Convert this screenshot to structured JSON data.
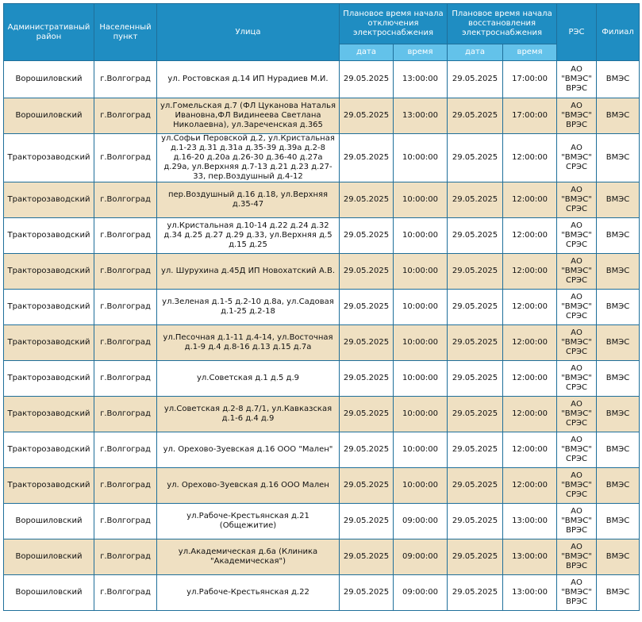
{
  "headers": {
    "district": "Административный район",
    "locality": "Населенный пункт",
    "street": "Улица",
    "off_time": "Плановое время начала отключения электроснабжения",
    "on_time": "Плановое время начала восстановления электроснабжения",
    "res": "РЭС",
    "branch": "Филиал",
    "date": "дата",
    "time": "время"
  },
  "rows": [
    {
      "district": "Ворошиловский",
      "locality": "г.Волгоград",
      "street": "ул. Ростовская д.14 ИП Нурадиев М.И.",
      "off_date": "29.05.2025",
      "off_time": "13:00:00",
      "on_date": "29.05.2025",
      "on_time": "17:00:00",
      "res": "АО \"ВМЭС\" ВРЭС",
      "branch": "ВМЭС"
    },
    {
      "district": "Ворошиловский",
      "locality": "г.Волгоград",
      "street": "ул.Гомельская д.7 (ФЛ Цуканова Наталья Ивановна,ФЛ Видинеева Светлана Николаевна), ул.Зареченская д.365",
      "off_date": "29.05.2025",
      "off_time": "13:00:00",
      "on_date": "29.05.2025",
      "on_time": "17:00:00",
      "res": "АО \"ВМЭС\" ВРЭС",
      "branch": "ВМЭС"
    },
    {
      "district": "Тракторозаводский",
      "locality": "г.Волгоград",
      "street": "ул.Софьи Перовской д.2, ул.Кристальная д.1-23 д.31 д.31а д.35-39 д.39а д.2-8 д.16-20 д.20а д.26-30 д.36-40 д.27а д.29а, ул.Верхняя д.7-13 д.21 д.23 д.27-33, пер.Воздушный д.4-12",
      "off_date": "29.05.2025",
      "off_time": "10:00:00",
      "on_date": "29.05.2025",
      "on_time": "12:00:00",
      "res": "АО \"ВМЭС\" СРЭС",
      "branch": "ВМЭС"
    },
    {
      "district": "Тракторозаводский",
      "locality": "г.Волгоград",
      "street": "пер.Воздушный д.16 д.18, ул.Верхняя д.35-47",
      "off_date": "29.05.2025",
      "off_time": "10:00:00",
      "on_date": "29.05.2025",
      "on_time": "12:00:00",
      "res": "АО \"ВМЭС\" СРЭС",
      "branch": "ВМЭС"
    },
    {
      "district": "Тракторозаводский",
      "locality": "г.Волгоград",
      "street": "ул.Кристальная д.10-14 д.22 д.24 д.32 д.34 д.25 д.27 д.29 д.33, ул.Верхняя д.5 д.15 д.25",
      "off_date": "29.05.2025",
      "off_time": "10:00:00",
      "on_date": "29.05.2025",
      "on_time": "12:00:00",
      "res": "АО \"ВМЭС\" СРЭС",
      "branch": "ВМЭС"
    },
    {
      "district": "Тракторозаводский",
      "locality": "г.Волгоград",
      "street": "ул. Шурухина д.45Д ИП Новохатский А.В.",
      "off_date": "29.05.2025",
      "off_time": "10:00:00",
      "on_date": "29.05.2025",
      "on_time": "12:00:00",
      "res": "АО \"ВМЭС\" СРЭС",
      "branch": "ВМЭС"
    },
    {
      "district": "Тракторозаводский",
      "locality": "г.Волгоград",
      "street": "ул.Зеленая д.1-5 д.2-10 д.8а, ул.Садовая д.1-25 д.2-18",
      "off_date": "29.05.2025",
      "off_time": "10:00:00",
      "on_date": "29.05.2025",
      "on_time": "12:00:00",
      "res": "АО \"ВМЭС\" СРЭС",
      "branch": "ВМЭС"
    },
    {
      "district": "Тракторозаводский",
      "locality": "г.Волгоград",
      "street": "ул.Песочная д.1-11 д.4-14, ул.Восточная д.1-9 д.4 д.8-16 д.13 д.15 д.7а",
      "off_date": "29.05.2025",
      "off_time": "10:00:00",
      "on_date": "29.05.2025",
      "on_time": "12:00:00",
      "res": "АО \"ВМЭС\" СРЭС",
      "branch": "ВМЭС"
    },
    {
      "district": "Тракторозаводский",
      "locality": "г.Волгоград",
      "street": "ул.Советская д.1 д.5 д.9",
      "off_date": "29.05.2025",
      "off_time": "10:00:00",
      "on_date": "29.05.2025",
      "on_time": "12:00:00",
      "res": "АО \"ВМЭС\" СРЭС",
      "branch": "ВМЭС"
    },
    {
      "district": "Тракторозаводский",
      "locality": "г.Волгоград",
      "street": "ул.Советская д.2-8 д.7/1, ул.Кавказская д.1-6 д.4 д.9",
      "off_date": "29.05.2025",
      "off_time": "10:00:00",
      "on_date": "29.05.2025",
      "on_time": "12:00:00",
      "res": "АО \"ВМЭС\" СРЭС",
      "branch": "ВМЭС"
    },
    {
      "district": "Тракторозаводский",
      "locality": "г.Волгоград",
      "street": "ул. Орехово-Зуевская д.16 ООО \"Мален\"",
      "off_date": "29.05.2025",
      "off_time": "10:00:00",
      "on_date": "29.05.2025",
      "on_time": "12:00:00",
      "res": "АО \"ВМЭС\" СРЭС",
      "branch": "ВМЭС"
    },
    {
      "district": "Тракторозаводский",
      "locality": "г.Волгоград",
      "street": "ул. Орехово-Зуевская д.16 ООО Мален",
      "off_date": "29.05.2025",
      "off_time": "10:00:00",
      "on_date": "29.05.2025",
      "on_time": "12:00:00",
      "res": "АО \"ВМЭС\" СРЭС",
      "branch": "ВМЭС"
    },
    {
      "district": "Ворошиловский",
      "locality": "г.Волгоград",
      "street": "ул.Рабоче-Крестьянская д.21 (Общежитие)",
      "off_date": "29.05.2025",
      "off_time": "09:00:00",
      "on_date": "29.05.2025",
      "on_time": "13:00:00",
      "res": "АО \"ВМЭС\" ВРЭС",
      "branch": "ВМЭС"
    },
    {
      "district": "Ворошиловский",
      "locality": "г.Волгоград",
      "street": "ул.Академическая д.6а (Клиника \"Академическая\")",
      "off_date": "29.05.2025",
      "off_time": "09:00:00",
      "on_date": "29.05.2025",
      "on_time": "13:00:00",
      "res": "АО \"ВМЭС\" ВРЭС",
      "branch": "ВМЭС"
    },
    {
      "district": "Ворошиловский",
      "locality": "г.Волгоград",
      "street": "ул.Рабоче-Крестьянская д.22",
      "off_date": "29.05.2025",
      "off_time": "09:00:00",
      "on_date": "29.05.2025",
      "on_time": "13:00:00",
      "res": "АО \"ВМЭС\" ВРЭС",
      "branch": "ВМЭС"
    }
  ]
}
